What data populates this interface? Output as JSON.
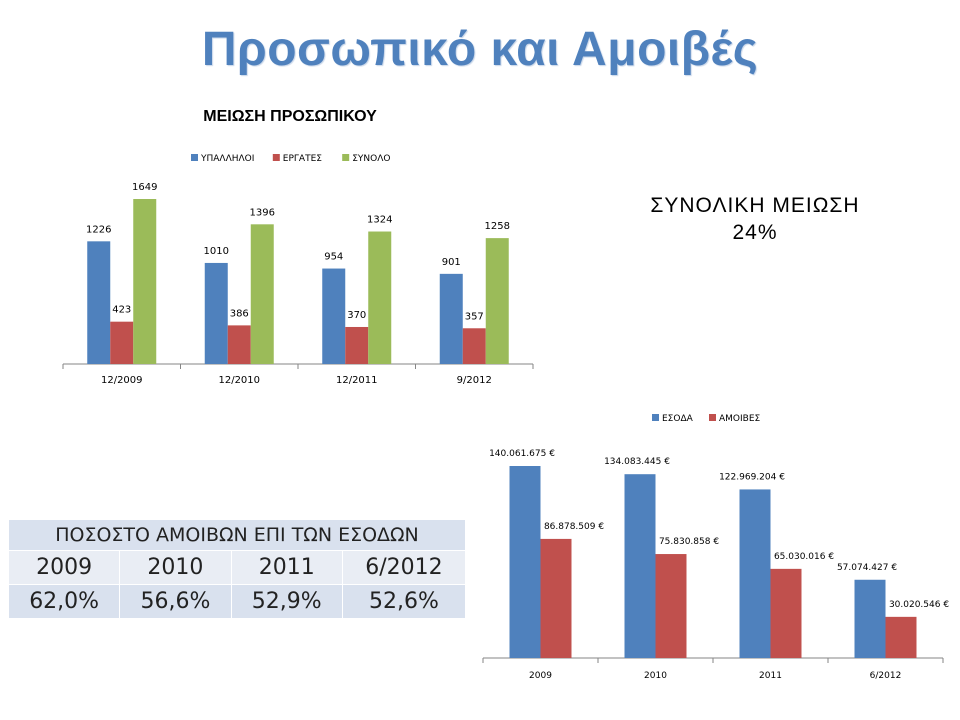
{
  "slide": {
    "title": "Προσωπικό και Αμοιβές",
    "total_reduction_line1": "ΣΥΝΟΛΙΚΗ  ΜΕΙΩΣΗ",
    "total_reduction_line2": "24%"
  },
  "table": {
    "header": "ΠΟΣΟΣΤΟ ΑΜΟΙΒΩΝ ΕΠΙ ΤΩΝ ΕΣΟΔΩΝ",
    "years": [
      "2009",
      "2010",
      "2011",
      "6/2012"
    ],
    "values": [
      "62,0%",
      "56,6%",
      "52,9%",
      "52,6%"
    ]
  },
  "chart_data": [
    {
      "type": "bar",
      "title": "ΜΕΙΩΣΗ ΠΡΟΣΩΠΙΚΟΥ",
      "categories": [
        "12/2009",
        "12/2010",
        "12/2011",
        "9/2012"
      ],
      "series": [
        {
          "name": "ΥΠΑΛΛΗΛΟΙ",
          "color": "#4f81bd",
          "values": [
            1226,
            1010,
            954,
            901
          ],
          "labels": [
            "1226",
            "1010",
            "954",
            "901"
          ]
        },
        {
          "name": "ΕΡΓΑΤΕΣ",
          "color": "#c0504d",
          "values": [
            423,
            386,
            370,
            357
          ],
          "labels": [
            "423",
            "386",
            "370",
            "357"
          ]
        },
        {
          "name": "ΣΥΝΟΛΟ",
          "color": "#9bbb59",
          "values": [
            1649,
            1396,
            1324,
            1258
          ],
          "labels": [
            "1649",
            "1396",
            "1324",
            "1258"
          ]
        }
      ],
      "ylim": [
        0,
        1649
      ],
      "legend": "top",
      "grid": false
    },
    {
      "type": "bar",
      "title": "",
      "categories": [
        "2009",
        "2010",
        "2011",
        "6/2012"
      ],
      "series": [
        {
          "name": "ΕΣΟΔΑ",
          "color": "#4f81bd",
          "values": [
            140061675,
            134083445,
            122969204,
            57074427
          ],
          "labels": [
            "140.061.675 €",
            "134.083.445 €",
            "122.969.204 €",
            "57.074.427 €"
          ]
        },
        {
          "name": "ΑΜΟΙΒΕΣ",
          "color": "#c0504d",
          "values": [
            86878509,
            75830858,
            65030016,
            30020546
          ],
          "labels": [
            "86.878.509 €",
            "75.830.858 €",
            "65.030.016 €",
            "30.020.546 €"
          ]
        }
      ],
      "ylim": [
        0,
        140061675
      ],
      "legend": "top",
      "grid": false
    }
  ]
}
